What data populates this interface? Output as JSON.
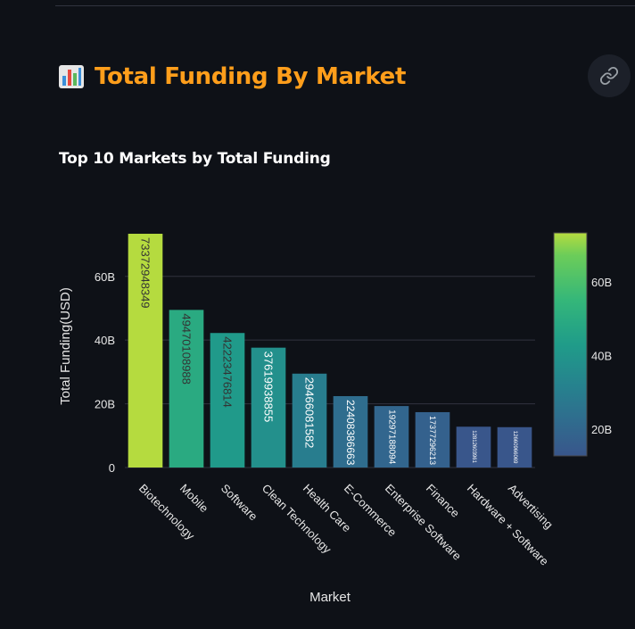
{
  "header": {
    "icon": "bar-chart-icon",
    "title": "Total Funding By Market",
    "link_icon": "link-icon",
    "accent_color": "#ff9e1b"
  },
  "chart_data": {
    "type": "bar",
    "title": "Top 10 Markets by Total Funding",
    "xlabel": "Market",
    "ylabel": "Total Funding(USD)",
    "categories": [
      "Biotechnology",
      "Mobile",
      "Software",
      "Clean Technology",
      "Health Care",
      "E-Commerce",
      "Enterprise Software",
      "Finance",
      "Hardware + Software",
      "Advertising"
    ],
    "values": [
      73372948349,
      49470108988,
      42223476814,
      37619938855,
      29466081582,
      22408386663,
      19297188094,
      17377296213,
      12812603961,
      12660966069
    ],
    "data_labels": [
      "73372948349",
      "49470108988",
      "42223476814",
      "37619938855",
      "29466081582",
      "22408386663",
      "19297188094",
      "17377296213",
      "12812603961",
      "12660966069"
    ],
    "y_ticks": [
      {
        "value": 0,
        "label": "0"
      },
      {
        "value": 20000000000,
        "label": "20B"
      },
      {
        "value": 40000000000,
        "label": "40B"
      },
      {
        "value": 60000000000,
        "label": "60B"
      }
    ],
    "ylim": [
      0,
      73372948349
    ],
    "colorscale": "Viridis",
    "colorbar": {
      "range": [
        12660966069,
        73372948349
      ],
      "ticks": [
        {
          "value": 20000000000,
          "label": "20B"
        },
        {
          "value": 40000000000,
          "label": "40B"
        },
        {
          "value": 60000000000,
          "label": "60B"
        }
      ]
    },
    "grid": true,
    "legend": "none"
  }
}
